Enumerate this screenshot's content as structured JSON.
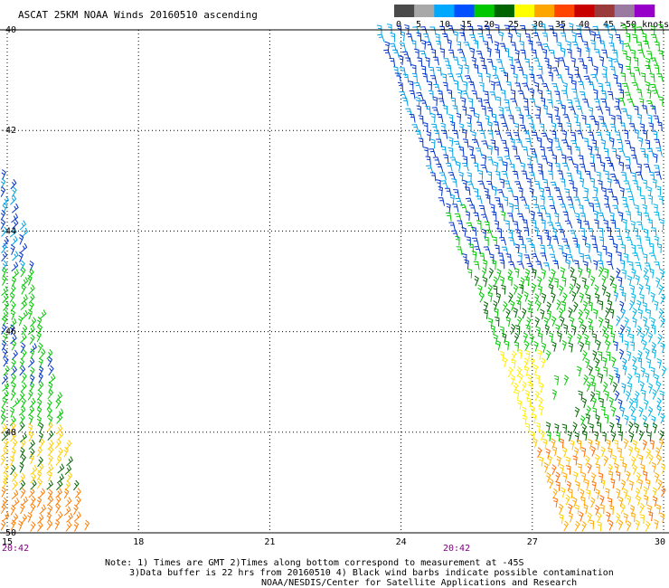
{
  "title": "ASCAT 25KM NOAA Winds 20160510 ascending",
  "colorbar": {
    "ticks": [
      "0",
      "5",
      "10",
      "15",
      "20",
      "25",
      "30",
      "35",
      "40",
      "45",
      ">50 knots"
    ],
    "colors": [
      "#4a4a4a",
      "#a8a8a8",
      "#00a8ff",
      "#0050ff",
      "#00c800",
      "#006400",
      "#ffff00",
      "#ffa500",
      "#ff4500",
      "#c80000",
      "#9a3a3a",
      "#9a7aa0",
      "#9600c8"
    ]
  },
  "axes": {
    "y_labels": [
      "-40",
      "-42",
      "-44",
      "-46",
      "-48",
      "-50"
    ],
    "x_labels": [
      "15",
      "18",
      "21",
      "24",
      "27",
      "30"
    ],
    "time_labels": [
      "20:42",
      "20:42"
    ]
  },
  "notes": {
    "line1": "Note: 1) Times are GMT 2)Times along bottom correspond to measurement at -45S",
    "line2": "3)Data buffer is 22 hrs from 20160510 4) Black wind barbs indicate possible contamination",
    "line3": "NOAA/NESDIS/Center for Satellite Applications and Research"
  },
  "colors": {
    "grid": "#000000",
    "time_label": "#800080"
  }
}
